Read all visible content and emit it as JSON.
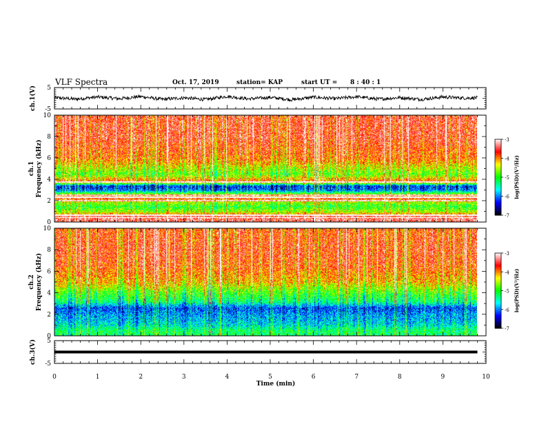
{
  "header": {
    "title": "VLF Spectra",
    "date": "Oct. 17, 2019",
    "station": "station= KAP",
    "start_label": "start  UT  =",
    "start_time": "8  : 40 : 1"
  },
  "chart_data": [
    {
      "type": "line",
      "panel": "ch1-waveform",
      "ylabel": "ch.1(V)",
      "ylim": [
        -5,
        5
      ],
      "xlim": [
        0,
        10
      ],
      "y_ticks": [
        "5",
        "-5"
      ],
      "description_of_signal": "noisy waveform fluctuating around 0 V, mostly between -1 and 1 V",
      "x": [
        0,
        0.5,
        1,
        1.5,
        2,
        2.5,
        3,
        3.5,
        4,
        4.5,
        5,
        5.5,
        6,
        6.5,
        7,
        7.5,
        8,
        8.5,
        9,
        9.5,
        9.8
      ],
      "y": [
        0.3,
        -0.4,
        0.6,
        -0.2,
        0.8,
        -0.5,
        0.2,
        -0.6,
        0.9,
        -0.3,
        0.4,
        -0.7,
        0.5,
        -0.2,
        0.7,
        -0.4,
        0.3,
        -0.5,
        0.6,
        0.1,
        0.2
      ]
    },
    {
      "type": "heatmap",
      "panel": "ch1-spectrogram",
      "ylabel": "ch.1 Frequency (kHz)",
      "ylabel_line1": "ch.1",
      "ylabel_line2": "Frequency  (kHz)",
      "xlim": [
        0,
        10
      ],
      "ylim": [
        0,
        10
      ],
      "y_ticks": [
        "0",
        "2",
        "4",
        "6",
        "8",
        "10"
      ],
      "colorbar": {
        "label": "log(PSD)(V²/Hz)",
        "range": [
          -7,
          -3
        ],
        "ticks": [
          "-3",
          "-4",
          "-5",
          "-6",
          "-7"
        ]
      },
      "band_profile": [
        {
          "f_khz": 0.5,
          "log_psd": -3.4
        },
        {
          "f_khz": 1.0,
          "log_psd": -4.6
        },
        {
          "f_khz": 1.5,
          "log_psd": -5.0
        },
        {
          "f_khz": 2.0,
          "log_psd": -4.4
        },
        {
          "f_khz": 2.3,
          "log_psd": -3.5
        },
        {
          "f_khz": 3.0,
          "log_psd": -6.0
        },
        {
          "f_khz": 3.4,
          "log_psd": -6.3
        },
        {
          "f_khz": 3.8,
          "log_psd": -3.8
        },
        {
          "f_khz": 4.5,
          "log_psd": -4.8
        },
        {
          "f_khz": 6.0,
          "log_psd": -3.9
        },
        {
          "f_khz": 8.0,
          "log_psd": -3.6
        },
        {
          "f_khz": 10.0,
          "log_psd": -3.6
        }
      ],
      "narrowband_lines_khz": [
        0.45,
        0.7,
        2.05,
        2.35,
        2.55,
        3.75
      ]
    },
    {
      "type": "heatmap",
      "panel": "ch2-spectrogram",
      "ylabel": "ch.2 Frequency (kHz)",
      "ylabel_line1": "ch.2",
      "ylabel_line2": "Frequency  (kHz)",
      "xlim": [
        0,
        10
      ],
      "ylim": [
        0,
        10
      ],
      "y_ticks": [
        "0",
        "2",
        "4",
        "6",
        "8",
        "10"
      ],
      "colorbar": {
        "label": "log(PSD)(V²/Hz)",
        "range": [
          -7,
          -3
        ],
        "ticks": [
          "-3",
          "-4",
          "-5",
          "-6",
          "-7"
        ]
      },
      "band_profile": [
        {
          "f_khz": 0.5,
          "log_psd": -5.2
        },
        {
          "f_khz": 1.0,
          "log_psd": -5.6
        },
        {
          "f_khz": 1.5,
          "log_psd": -5.8
        },
        {
          "f_khz": 2.0,
          "log_psd": -5.9
        },
        {
          "f_khz": 2.6,
          "log_psd": -6.2
        },
        {
          "f_khz": 3.2,
          "log_psd": -5.3
        },
        {
          "f_khz": 4.0,
          "log_psd": -4.9
        },
        {
          "f_khz": 5.0,
          "log_psd": -4.2
        },
        {
          "f_khz": 6.5,
          "log_psd": -3.8
        },
        {
          "f_khz": 8.0,
          "log_psd": -3.7
        },
        {
          "f_khz": 10.0,
          "log_psd": -3.8
        }
      ],
      "narrowband_lines_khz": []
    },
    {
      "type": "line",
      "panel": "ch3-waveform",
      "ylabel": "ch.3(V)",
      "ylim": [
        -5,
        5
      ],
      "xlim": [
        0,
        10
      ],
      "y_ticks": [
        "5",
        "-5"
      ],
      "x": [
        0,
        9.8
      ],
      "y": [
        0,
        0
      ]
    }
  ],
  "x_axis": {
    "label": "Time  (min)",
    "ticks": [
      "0",
      "1",
      "2",
      "3",
      "4",
      "5",
      "6",
      "7",
      "8",
      "9",
      "10"
    ]
  },
  "colors": {
    "waveform": "#000000",
    "colormap": [
      "#000000",
      "#0000ff",
      "#00ffff",
      "#00ff00",
      "#ffff00",
      "#ff0000",
      "#ffffff"
    ]
  }
}
